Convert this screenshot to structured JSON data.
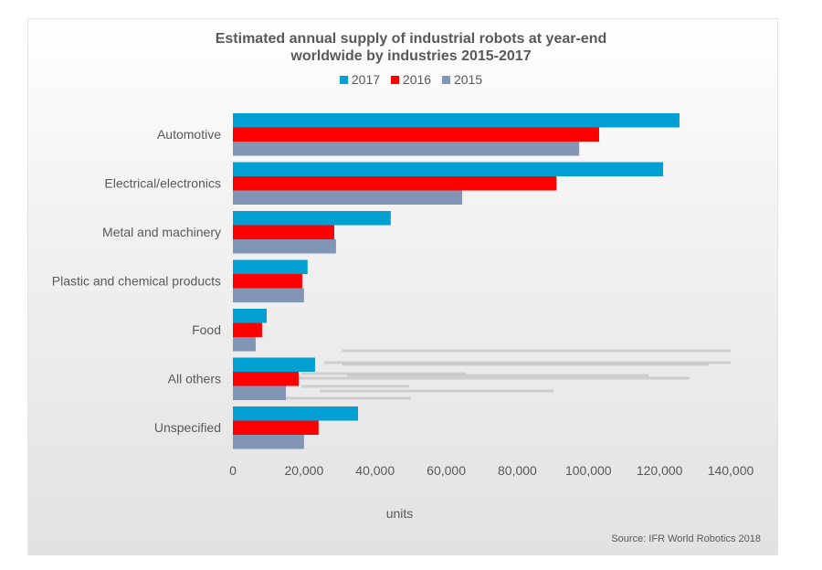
{
  "chart_data": {
    "type": "bar",
    "orientation": "horizontal",
    "title": "Estimated annual supply of industrial robots at year-end worldwide  by industries 2015-2017",
    "title_lines": [
      "Estimated annual supply of industrial robots at year-end",
      "worldwide  by industries 2015-2017"
    ],
    "categories": [
      "Automotive",
      "Electrical/electronics",
      "Metal and machinery",
      "Plastic and chemical products",
      "Food",
      "All others",
      "Unspecified"
    ],
    "series": [
      {
        "name": "2017",
        "color": "#00a0d2",
        "values": [
          125600,
          121000,
          44400,
          21000,
          9500,
          23100,
          35200
        ]
      },
      {
        "name": "2016",
        "color": "#ff0000",
        "values": [
          103000,
          91000,
          28500,
          19500,
          8200,
          18500,
          24100
        ]
      },
      {
        "name": "2015",
        "color": "#8096b4",
        "values": [
          97400,
          64500,
          29000,
          20000,
          6400,
          14900,
          20000
        ]
      }
    ],
    "xlabel": "units",
    "xlim": [
      0,
      140000
    ],
    "xticks": [
      "0",
      "20,000",
      "40,000",
      "60,000",
      "80,000",
      "100,000",
      "120,000",
      "140,000"
    ],
    "grid": false,
    "legend_position": "top",
    "source": "Source: IFR World Robotics 2018"
  }
}
